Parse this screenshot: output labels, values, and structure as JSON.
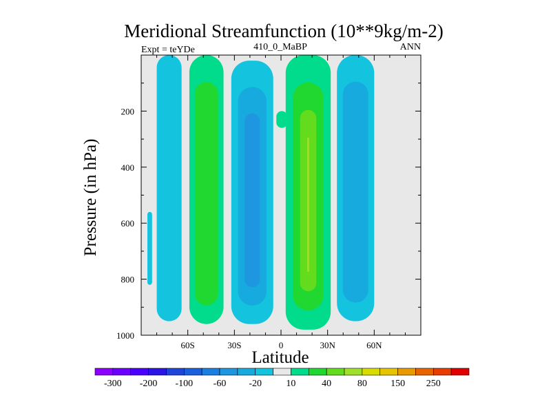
{
  "chart_data": {
    "type": "contour",
    "title": "Meridional Streamfunction (10**9kg/m-2)",
    "left_string": "Expt = teYDe",
    "center_string": "410_0_MaBP",
    "right_string": "ANN",
    "xlabel": "Latitude",
    "ylabel": "Pressure (in hPa)",
    "xlim": [
      -90,
      90
    ],
    "ylim": [
      0,
      1000
    ],
    "y_reversed": true,
    "x_ticks": [
      {
        "value": -60,
        "label": "60S"
      },
      {
        "value": -30,
        "label": "30S"
      },
      {
        "value": 0,
        "label": "0"
      },
      {
        "value": 30,
        "label": "30N"
      },
      {
        "value": 60,
        "label": "60N"
      }
    ],
    "y_ticks": [
      {
        "value": 200,
        "label": "200"
      },
      {
        "value": 400,
        "label": "400"
      },
      {
        "value": 600,
        "label": "600"
      },
      {
        "value": 800,
        "label": "800"
      },
      {
        "value": 1000,
        "label": "1000"
      }
    ],
    "contour_levels": [
      -300,
      -250,
      -200,
      -150,
      -100,
      -80,
      -60,
      -40,
      -20,
      -10,
      10,
      20,
      40,
      60,
      80,
      100,
      150,
      200,
      250,
      300
    ],
    "colorbar": {
      "colors": [
        "#8b00ff",
        "#6c00ff",
        "#4a00ff",
        "#2a14e6",
        "#1f44d9",
        "#1a5fdc",
        "#1a7fe0",
        "#1f96e0",
        "#16aadf",
        "#14c3dd",
        "#e8e8e8",
        "#00dc8c",
        "#20d830",
        "#64dc1e",
        "#a0e028",
        "#d8dc00",
        "#e8c400",
        "#e89a00",
        "#e86400",
        "#e83c00",
        "#e00000"
      ],
      "labels": [
        {
          "after_index": 0,
          "text": "-300"
        },
        {
          "after_index": 2,
          "text": "-200"
        },
        {
          "after_index": 4,
          "text": "-100"
        },
        {
          "after_index": 6,
          "text": "-60"
        },
        {
          "after_index": 8,
          "text": "-20"
        },
        {
          "after_index": 10,
          "text": "10"
        },
        {
          "after_index": 12,
          "text": "40"
        },
        {
          "after_index": 14,
          "text": "80"
        },
        {
          "after_index": 16,
          "text": "150"
        },
        {
          "after_index": 18,
          "text": "250"
        }
      ]
    },
    "background_color": "#e8e8e8",
    "cells": [
      {
        "name": "sh-polar-cell",
        "lat": [
          -80,
          -64
        ],
        "p": [
          0,
          950
        ],
        "levels": [
          -10
        ]
      },
      {
        "name": "sh-outer-tail",
        "lat": [
          -86,
          -83
        ],
        "p": [
          560,
          820
        ],
        "levels": [
          -10
        ]
      },
      {
        "name": "sh-ferrel-cell",
        "lat": [
          -59,
          -37
        ],
        "p": [
          0,
          960
        ],
        "levels": [
          10,
          20
        ]
      },
      {
        "name": "sh-hadley-cell",
        "lat": [
          -32,
          -5
        ],
        "p": [
          20,
          960
        ],
        "levels": [
          -10,
          -20,
          -40
        ]
      },
      {
        "name": "equatorial-tongue",
        "lat": [
          -3,
          4
        ],
        "p": [
          200,
          260
        ],
        "levels": [
          10
        ]
      },
      {
        "name": "nh-hadley-cell",
        "lat": [
          3,
          32
        ],
        "p": [
          0,
          980
        ],
        "levels": [
          10,
          20,
          40,
          60,
          80
        ]
      },
      {
        "name": "nh-ferrel-cell",
        "lat": [
          36,
          60
        ],
        "p": [
          0,
          950
        ],
        "levels": [
          -10,
          -20
        ]
      }
    ]
  }
}
